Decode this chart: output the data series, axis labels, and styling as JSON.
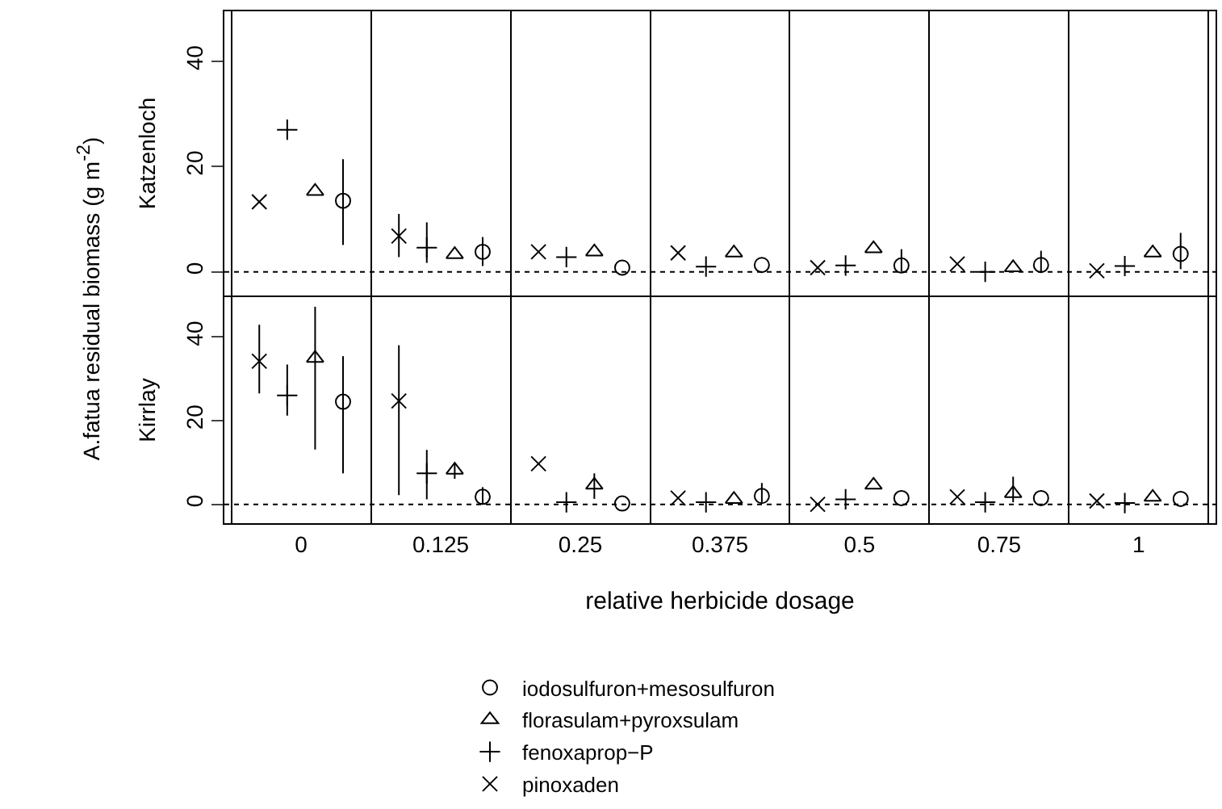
{
  "chart_data": [
    {
      "type": "scatter",
      "ylabel": "Katzenloch",
      "annotations": [
        "A.fatua residual biomass (g m$^{-2}$)"
      ],
      "categories": [
        "0",
        "0.125",
        "0.25",
        "0.375",
        "0.5",
        "0.75",
        "1"
      ],
      "ylim": [
        -4.5,
        49.5
      ],
      "yticks": [
        0,
        20,
        40
      ],
      "grid": "x",
      "tick_labels": "y",
      "ref_lines": [
        {
          "axis": "y",
          "value": 0,
          "line_style": "dotted",
          "color": "#000000"
        }
      ],
      "series": [
        {
          "color": "#000000",
          "marker": "x",
          "values": [
            13.3,
            6.8,
            3.8,
            3.6,
            0.8,
            1.5,
            0.2
          ],
          "errors": [
            null,
            [
              2.8,
              11
            ],
            null,
            null,
            null,
            null,
            null
          ]
        },
        {
          "color": "#000000",
          "marker": "cross",
          "values": [
            27,
            4.6,
            2.8,
            1.0,
            1.2,
            0,
            1.1
          ],
          "errors": [
            null,
            [
              1.7,
              9.4
            ],
            null,
            null,
            null,
            null,
            null
          ]
        },
        {
          "color": "#000000",
          "marker": "triangle",
          "values": [
            15.3,
            3.3,
            3.8,
            3.6,
            4.4,
            0.8,
            3.6
          ],
          "errors": [
            null,
            null,
            null,
            null,
            null,
            null,
            null
          ]
        },
        {
          "color": "#000000",
          "marker": "circle",
          "values": [
            13.5,
            3.8,
            0.8,
            1.3,
            1.2,
            1.3,
            3.4
          ],
          "errors": [
            [
              5.1,
              21.4
            ],
            [
              1.1,
              6.6
            ],
            null,
            null,
            [
              0,
              4.3
            ],
            [
              0,
              4
            ],
            [
              0.5,
              7.4
            ]
          ]
        }
      ]
    },
    {
      "type": "scatter",
      "ylabel": "Kirrlay",
      "xlabel": "relative herbicide dosage",
      "categories": [
        "0",
        "0.125",
        "0.25",
        "0.375",
        "0.5",
        "0.75",
        "1"
      ],
      "ylim": [
        -4.5,
        49.5
      ],
      "yticks": [
        0,
        20,
        40
      ],
      "grid": "x",
      "legend": "bottom",
      "ref_lines": [
        {
          "axis": "y",
          "value": 0,
          "line_style": "dotted",
          "color": "#000000"
        }
      ],
      "series": [
        {
          "name": "pinoxaden",
          "color": "#000000",
          "marker": "x",
          "values": [
            34.2,
            24.7,
            9.7,
            1.5,
            0,
            1.8,
            0.8
          ],
          "errors": [
            [
              26.5,
              42.9
            ],
            [
              2.2,
              38
            ],
            null,
            null,
            null,
            null,
            null
          ]
        },
        {
          "name": "fenoxaprop−P",
          "color": "#000000",
          "marker": "cross",
          "values": [
            26,
            7.4,
            0.5,
            0.5,
            1.2,
            0.5,
            0.3
          ],
          "errors": [
            [
              21.2,
              33.4
            ],
            [
              1.2,
              13
            ],
            null,
            null,
            null,
            null,
            null
          ]
        },
        {
          "name": "florasulam+pyroxsulam",
          "color": "#000000",
          "marker": "triangle",
          "values": [
            34.9,
            8.2,
            4.6,
            1.2,
            4.6,
            2.6,
            1.7
          ],
          "errors": [
            [
              13.1,
              47.2
            ],
            [
              6.1,
              9.7
            ],
            [
              1.3,
              7.4
            ],
            null,
            null,
            [
              0.5,
              6.6
            ],
            null
          ]
        },
        {
          "name": "iodosulfuron+mesosulfuron",
          "color": "#000000",
          "marker": "circle",
          "values": [
            24.5,
            1.8,
            0.2,
            2.0,
            1.5,
            1.5,
            1.3
          ],
          "errors": [
            [
              7.4,
              35.4
            ],
            [
              0,
              4.1
            ],
            null,
            [
              0.5,
              5.1
            ],
            null,
            null,
            null
          ]
        }
      ]
    }
  ]
}
